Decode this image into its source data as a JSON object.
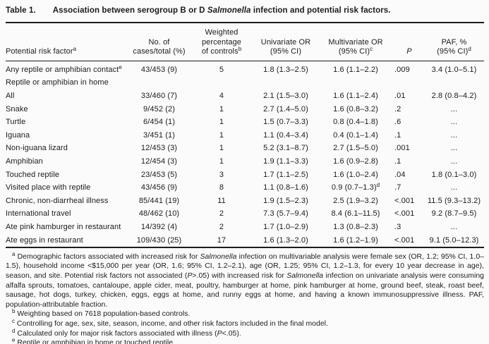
{
  "table": {
    "label": "Table 1.",
    "title": "Association between serogroup B or D *Salmonella* infection and potential risk factors.",
    "columns": [
      {
        "key": "risk_factor",
        "header": "Potential risk factor^a",
        "align": "c0"
      },
      {
        "key": "cases_total",
        "header": "No. of\ncases/total (%)",
        "align": "c1"
      },
      {
        "key": "weighted_pct",
        "header": "Weighted\npercentage\nof controls^b",
        "align": "c2"
      },
      {
        "key": "univariate",
        "header": "Univariate OR\n(95% CI)",
        "align": "c3"
      },
      {
        "key": "multivariate",
        "header": "Multivariate OR\n(95% CI)^c",
        "align": "c4"
      },
      {
        "key": "p_value",
        "header": "*P*",
        "align": "c5"
      },
      {
        "key": "paf",
        "header": "PAF, %\n(95% CI)^d",
        "align": "c6"
      }
    ],
    "rows": [
      {
        "label": "Any reptile or amphibian contact^e",
        "indent": false,
        "cells": [
          "43/453 (9)",
          "5",
          "1.8 (1.3–2.5)",
          "1.6 (1.1–2.2)",
          ".009",
          "3.4 (1.0–5.1)"
        ]
      },
      {
        "label": "Reptile or amphibian in home",
        "indent": false,
        "cells": [
          "",
          "",
          "",
          "",
          "",
          ""
        ]
      },
      {
        "label": "All",
        "indent": true,
        "cells": [
          "33/460 (7)",
          "4",
          "2.1 (1.5–3.0)",
          "1.6 (1.1–2.4)",
          ".01",
          "2.8 (0.8–4.2)"
        ]
      },
      {
        "label": "Snake",
        "indent": true,
        "cells": [
          "9/452 (2)",
          "1",
          "2.7 (1.4–5.0)",
          "1.6 (0.8–3.2)",
          ".2",
          "..."
        ]
      },
      {
        "label": "Turtle",
        "indent": true,
        "cells": [
          "6/454 (1)",
          "1",
          "1.5 (0.7–3.3)",
          "0.8 (0.4–1.8)",
          ".6",
          "..."
        ]
      },
      {
        "label": "Iguana",
        "indent": true,
        "cells": [
          "3/451 (1)",
          "1",
          "1.1 (0.4–3.4)",
          "0.4 (0.1–1.4)",
          ".1",
          "..."
        ]
      },
      {
        "label": "Non-iguana lizard",
        "indent": true,
        "cells": [
          "12/453 (3)",
          "1",
          "5.2 (3.1–8.7)",
          "2.7 (1.5–5.0)",
          ".001",
          "..."
        ]
      },
      {
        "label": "Amphibian",
        "indent": true,
        "cells": [
          "12/454 (3)",
          "1",
          "1.9 (1.1–3.3)",
          "1.6 (0.9–2.8)",
          ".1",
          "..."
        ]
      },
      {
        "label": "Touched reptile",
        "indent": false,
        "cells": [
          "23/453 (5)",
          "3",
          "1.7 (1.1–2.5)",
          "1.6 (1.0–2.4)",
          ".04",
          "1.8 (0.1–3.0)"
        ]
      },
      {
        "label": "Visited place with reptile",
        "indent": false,
        "cells": [
          "43/456 (9)",
          "8",
          "1.1 (0.8–1.6)",
          "0.9 (0.7–1.3)^d",
          ".7",
          "..."
        ]
      },
      {
        "label": "Chronic, non-diarrheal illness",
        "indent": false,
        "cells": [
          "85/441 (19)",
          "11",
          "1.9 (1.5–2.3)",
          "2.5 (1.9–3.2)",
          "<.001",
          "11.5 (9.3–13.2)"
        ]
      },
      {
        "label": "International travel",
        "indent": false,
        "cells": [
          "48/462 (10)",
          "2",
          "7.3 (5.7–9.4)",
          "8.4 (6.1–11.5)",
          "<.001",
          "9.2 (8.7–9.5)"
        ]
      },
      {
        "label": "Ate pink hamburger in restaurant",
        "indent": false,
        "cells": [
          "14/392 (4)",
          "2",
          "1.7 (1.0–2.9)",
          "1.3 (0.8–2.3)",
          ".3",
          "..."
        ]
      },
      {
        "label": "Ate eggs in restaurant",
        "indent": false,
        "cells": [
          "109/430 (25)",
          "17",
          "1.6 (1.3–2.0)",
          "1.6 (1.2–1.9)",
          "<.001",
          "9.1 (5.0–12.3)"
        ]
      }
    ]
  },
  "footnotes": [
    {
      "marker": "a",
      "text": "Demographic factors associated with increased risk for *Salmonella* infection on multivariable analysis were female sex (OR, 1.2; 95% CI, 1.0–1.5), household income <$15,000 per year (OR, 1.6; 95% CI, 1.2–2.1), age (OR, 1.25; 95% CI, 1.2–1.3, for every 10 year decrease in age), season, and site. Potential risk factors not associated (*P*>.05) with increased risk for *Salmonella* infection on univariate analysis were consuming alfalfa sprouts, tomatoes, cantaloupe, apple cider, meat, poultry, hamburger at home, pink hamburger at home, ground beef, steak, roast beef, sausage, hot dogs, turkey, chicken, eggs, eggs at home, and runny eggs at home, and having a known immunosuppressive illness. PAF, population-attributable fraction."
    },
    {
      "marker": "b",
      "text": "Weighting based on 7618 population-based controls."
    },
    {
      "marker": "c",
      "text": "Controlling for age, sex, site, season, income, and other risk factors included in the final model."
    },
    {
      "marker": "d",
      "text": "Calculated only for major risk factors associated with illness (*P*<.05)."
    },
    {
      "marker": "e",
      "text": "Reptile or amphibian in home or touched reptile."
    }
  ]
}
